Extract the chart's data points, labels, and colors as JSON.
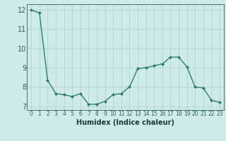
{
  "x": [
    0,
    1,
    2,
    3,
    4,
    5,
    6,
    7,
    8,
    9,
    10,
    11,
    12,
    13,
    14,
    15,
    16,
    17,
    18,
    19,
    20,
    21,
    22,
    23
  ],
  "y": [
    12.0,
    11.85,
    8.35,
    7.65,
    7.6,
    7.5,
    7.65,
    7.1,
    7.1,
    7.25,
    7.6,
    7.65,
    8.0,
    8.95,
    9.0,
    9.1,
    9.2,
    9.55,
    9.55,
    9.05,
    8.0,
    7.95,
    7.3,
    7.2
  ],
  "xlim": [
    -0.5,
    23.5
  ],
  "ylim": [
    6.8,
    12.3
  ],
  "yticks": [
    7,
    8,
    9,
    10,
    11,
    12
  ],
  "xticks": [
    0,
    1,
    2,
    3,
    4,
    5,
    6,
    7,
    8,
    9,
    10,
    11,
    12,
    13,
    14,
    15,
    16,
    17,
    18,
    19,
    20,
    21,
    22,
    23
  ],
  "xlabel": "Humidex (Indice chaleur)",
  "line_color": "#2e7d6e",
  "marker": "D",
  "marker_size": 2.0,
  "bg_color": "#ceeaea",
  "grid_color": "#b8d4d4",
  "tick_color": "#2e5f5f",
  "xlabel_color": "#1a3a3a",
  "xlabel_fontsize": 7.0,
  "ytick_fontsize": 7.0,
  "xtick_fontsize": 5.5
}
